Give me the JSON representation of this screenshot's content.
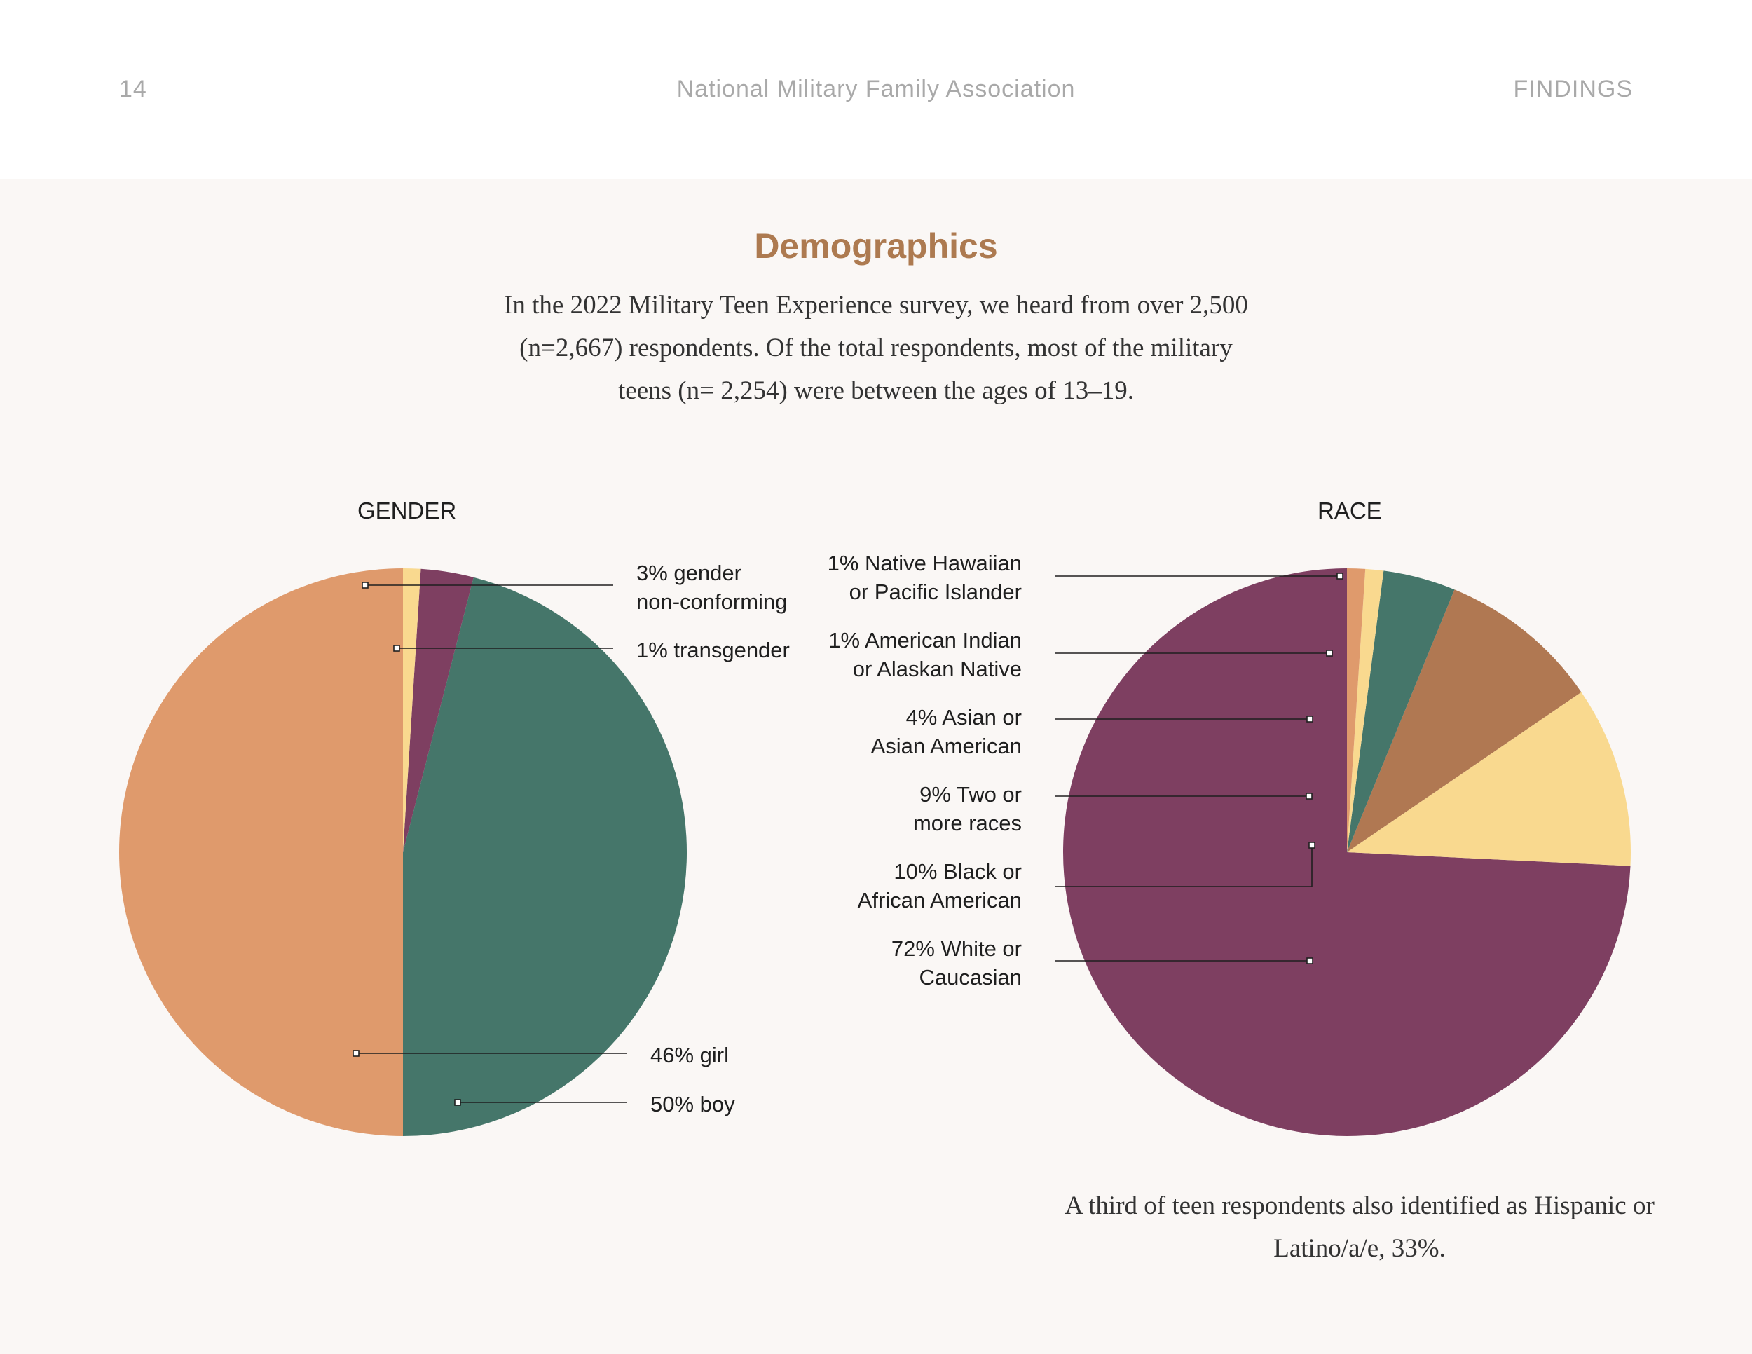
{
  "header": {
    "page_number": "14",
    "organization": "National Military Family Association",
    "section": "FINDINGS"
  },
  "title": "Demographics",
  "intro": "In the 2022 Military Teen Experience survey, we heard from over 2,500 (n=2,667) respondents. Of the total respondents, most of the military teens (n= 2,254) were between the ages of 13–19.",
  "footnote": "A third of teen respondents also identified as Hispanic or Latino/a/e, 33%.",
  "colors": {
    "orange": "#df9a6c",
    "teal": "#45766a",
    "plum": "#7e3f61",
    "butter": "#f9d98f",
    "brown": "#b07852"
  },
  "chart_data": [
    {
      "type": "pie",
      "title": "GENDER",
      "slices": [
        {
          "key": "boy",
          "label": "50% boy",
          "lines": [
            "50% boy"
          ],
          "value": 50,
          "color": "#df9a6c"
        },
        {
          "key": "girl",
          "label": "46% girl",
          "lines": [
            "46% girl"
          ],
          "value": 46,
          "color": "#45766a"
        },
        {
          "key": "gender-nonconforming",
          "label": "3% gender non-conforming",
          "lines": [
            "3% gender",
            "non-conforming"
          ],
          "value": 3,
          "color": "#7e3f61"
        },
        {
          "key": "transgender",
          "label": "1% transgender",
          "lines": [
            "1% transgender"
          ],
          "value": 1,
          "color": "#f9d98f"
        }
      ]
    },
    {
      "type": "pie",
      "title": "RACE",
      "slices": [
        {
          "key": "white",
          "label": "72% White or Caucasian",
          "lines": [
            "72% White or",
            "Caucasian"
          ],
          "value": 72,
          "color": "#7e3f61"
        },
        {
          "key": "black",
          "label": "10% Black or African American",
          "lines": [
            "10% Black or",
            "African American"
          ],
          "value": 10,
          "color": "#f9d98f"
        },
        {
          "key": "two-or-more",
          "label": "9% Two or more races",
          "lines": [
            "9% Two or",
            "more races"
          ],
          "value": 9,
          "color": "#b07852"
        },
        {
          "key": "asian",
          "label": "4% Asian or Asian American",
          "lines": [
            "4% Asian or",
            "Asian American"
          ],
          "value": 4,
          "color": "#45766a"
        },
        {
          "key": "american-indian",
          "label": "1% American Indian or Alaskan Native",
          "lines": [
            "1% American Indian",
            "or Alaskan Native"
          ],
          "value": 1,
          "color": "#f9d98f"
        },
        {
          "key": "native-hawaiian",
          "label": "1% Native Hawaiian or Pacific Islander",
          "lines": [
            "1% Native Hawaiian",
            "or Pacific Islander"
          ],
          "value": 1,
          "color": "#df9a6c"
        }
      ]
    }
  ]
}
